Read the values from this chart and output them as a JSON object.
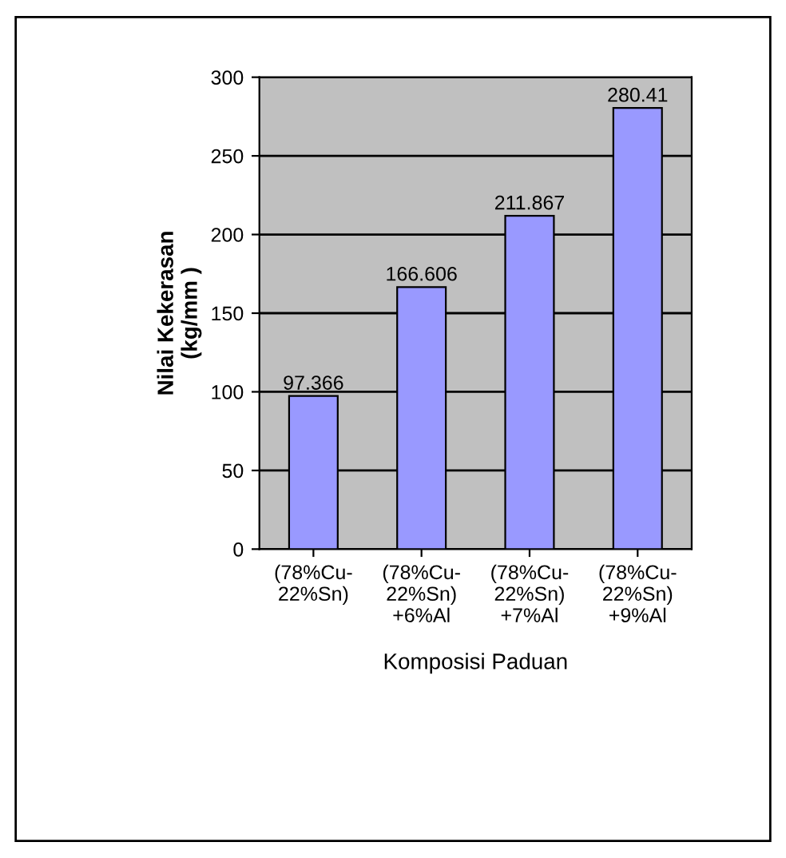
{
  "chart_data": {
    "type": "bar",
    "xlabel": "Komposisi Paduan",
    "ylabel": "Nilai Kekerasan\n(kg/mm )",
    "categories": [
      "(78%Cu-\n22%Sn)",
      "(78%Cu-\n22%Sn)\n+6%Al",
      "(78%Cu-\n22%Sn)\n+7%Al",
      "(78%Cu-\n22%Sn)\n+9%Al"
    ],
    "values": [
      97.366,
      166.606,
      211.867,
      280.41
    ],
    "color": "#9999ff",
    "ylim": [
      0,
      300
    ],
    "yticks": [
      0,
      50,
      100,
      150,
      200,
      250,
      300
    ],
    "grid": "y",
    "data_labels": true,
    "legend": false
  }
}
